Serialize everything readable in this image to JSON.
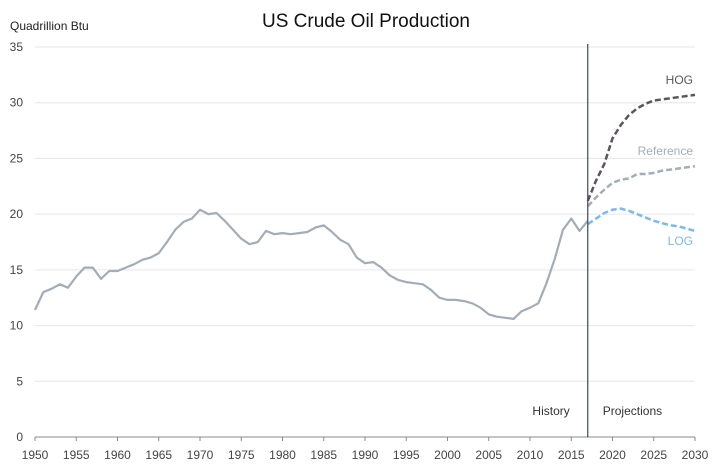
{
  "chart_data": {
    "type": "line",
    "title": "US Crude Oil Production",
    "ylabel": "Quadrillion Btu",
    "xlabel": "",
    "xlim": [
      1950,
      2030
    ],
    "ylim": [
      0,
      35
    ],
    "xticks": [
      1950,
      1955,
      1960,
      1965,
      1970,
      1975,
      1980,
      1985,
      1990,
      1995,
      2000,
      2005,
      2010,
      2015,
      2020,
      2025,
      2030
    ],
    "yticks": [
      0,
      5,
      10,
      15,
      20,
      25,
      30,
      35
    ],
    "grid": "horizontal",
    "divider_year": 2017,
    "divider_labels": {
      "left": "History",
      "right": "Projections"
    },
    "series": [
      {
        "key": "history",
        "color": "#a3adb7",
        "style": "solid",
        "x": [
          1950,
          1951,
          1952,
          1953,
          1954,
          1955,
          1956,
          1957,
          1958,
          1959,
          1960,
          1961,
          1962,
          1963,
          1964,
          1965,
          1966,
          1967,
          1968,
          1969,
          1970,
          1971,
          1972,
          1973,
          1974,
          1975,
          1976,
          1977,
          1978,
          1979,
          1980,
          1981,
          1982,
          1983,
          1984,
          1985,
          1986,
          1987,
          1988,
          1989,
          1990,
          1991,
          1992,
          1993,
          1994,
          1995,
          1996,
          1997,
          1998,
          1999,
          2000,
          2001,
          2002,
          2003,
          2004,
          2005,
          2006,
          2007,
          2008,
          2009,
          2010,
          2011,
          2012,
          2013,
          2014,
          2015,
          2016,
          2017
        ],
        "y": [
          11.4,
          13.0,
          13.3,
          13.7,
          13.4,
          14.4,
          15.2,
          15.2,
          14.2,
          14.9,
          14.9,
          15.2,
          15.5,
          15.9,
          16.1,
          16.5,
          17.5,
          18.6,
          19.3,
          19.6,
          20.4,
          20.0,
          20.1,
          19.4,
          18.6,
          17.8,
          17.3,
          17.5,
          18.5,
          18.2,
          18.3,
          18.2,
          18.3,
          18.4,
          18.8,
          19.0,
          18.4,
          17.7,
          17.3,
          16.1,
          15.6,
          15.7,
          15.2,
          14.5,
          14.1,
          13.9,
          13.8,
          13.7,
          13.2,
          12.5,
          12.3,
          12.3,
          12.2,
          12.0,
          11.6,
          11.0,
          10.8,
          10.7,
          10.6,
          11.3,
          11.6,
          12.0,
          13.8,
          16.0,
          18.6,
          19.6,
          18.5,
          19.4
        ]
      },
      {
        "key": "hog",
        "name": "HOG",
        "color": "#5e5360",
        "style": "dashed",
        "x": [
          2017,
          2018,
          2019,
          2020,
          2021,
          2022,
          2023,
          2024,
          2025,
          2026,
          2027,
          2028,
          2029,
          2030
        ],
        "y": [
          21.2,
          23.0,
          24.5,
          26.8,
          28.0,
          28.9,
          29.5,
          29.9,
          30.2,
          30.3,
          30.4,
          30.5,
          30.6,
          30.7
        ]
      },
      {
        "key": "reference",
        "name": "Reference",
        "color": "#a3adb7",
        "style": "dashed",
        "x": [
          2017,
          2018,
          2019,
          2020,
          2021,
          2022,
          2023,
          2024,
          2025,
          2026,
          2027,
          2028,
          2029,
          2030
        ],
        "y": [
          20.7,
          21.5,
          22.2,
          22.8,
          23.1,
          23.2,
          23.6,
          23.6,
          23.7,
          23.9,
          24.0,
          24.1,
          24.2,
          24.3
        ]
      },
      {
        "key": "log",
        "name": "LOG",
        "color": "#7cb9e8",
        "style": "dashed",
        "x": [
          2017,
          2018,
          2019,
          2020,
          2021,
          2022,
          2023,
          2024,
          2025,
          2026,
          2027,
          2028,
          2029,
          2030
        ],
        "y": [
          19.1,
          19.6,
          20.1,
          20.4,
          20.5,
          20.3,
          20.0,
          19.7,
          19.4,
          19.2,
          19.0,
          18.9,
          18.7,
          18.5
        ]
      }
    ]
  }
}
